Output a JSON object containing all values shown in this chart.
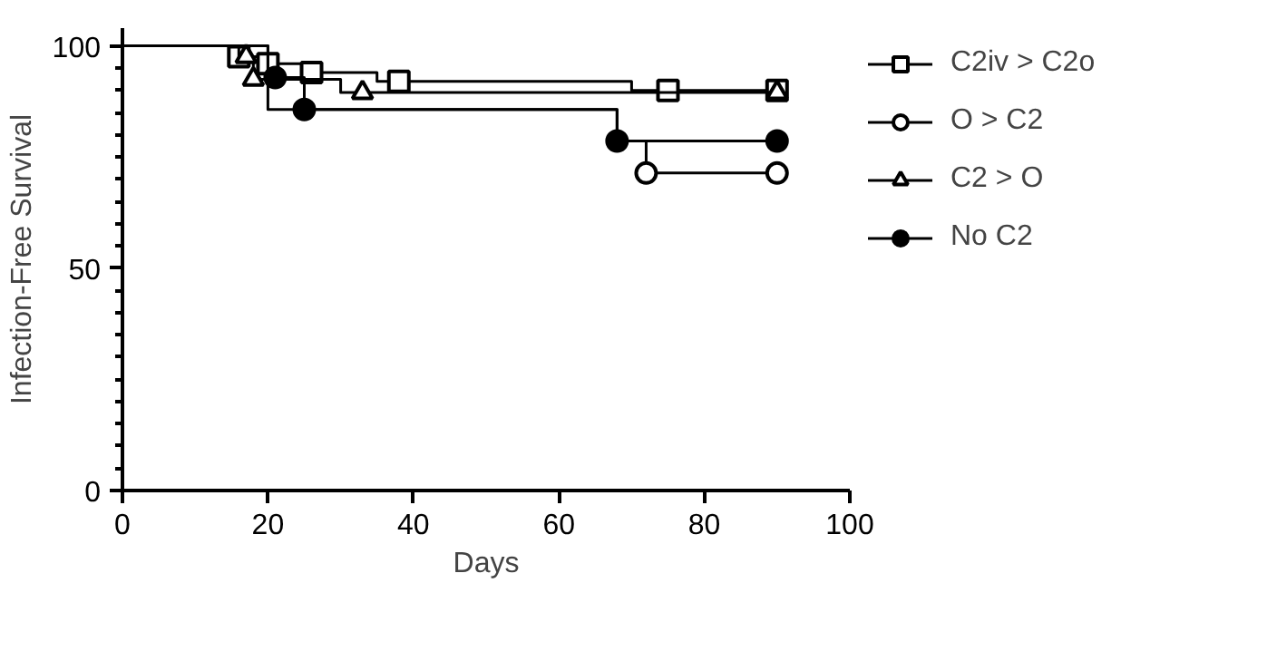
{
  "chart_data": {
    "type": "step",
    "xlabel": "Days",
    "ylabel": "Infection-Free Survival",
    "xlim": [
      0,
      100
    ],
    "xticks": [
      0,
      20,
      40,
      60,
      80,
      100
    ],
    "ylim": [
      0,
      104
    ],
    "yticks": [
      0,
      50,
      100
    ],
    "grid": false,
    "legend": "right",
    "line_style": "solid",
    "series": [
      {
        "name": "C2iv > C2o",
        "color": "#000000",
        "x": [
          0,
          15,
          19,
          25,
          35,
          70,
          90
        ],
        "values": [
          100,
          97.6,
          96,
          94,
          92,
          90,
          90
        ]
      },
      {
        "color": "#000000",
        "type": "scatter",
        "marker": "square",
        "colors": [
          "#ffffff",
          "#ffffff",
          "#ffffff",
          "#ffffff",
          "#ffffff",
          "#ffffff"
        ],
        "x": [
          16,
          20,
          26,
          38,
          75,
          90
        ],
        "values": [
          97.6,
          96,
          94,
          92,
          90,
          90
        ]
      },
      {
        "name": "O > C2",
        "color": "#000000",
        "x": [
          0,
          20,
          68,
          72,
          90
        ],
        "values": [
          100,
          85.7,
          78.6,
          71.4,
          71.4
        ]
      },
      {
        "color": "#000000",
        "type": "scatter",
        "marker": "circle",
        "colors": [
          "#ffffff",
          "#ffffff"
        ],
        "x": [
          72,
          90
        ],
        "values": [
          71.4,
          71.4
        ]
      },
      {
        "name": "C2 > O",
        "color": "#000000",
        "x": [
          0,
          16,
          18,
          30,
          90
        ],
        "values": [
          100,
          97.6,
          92.5,
          89.5,
          89.5
        ]
      },
      {
        "color": "#000000",
        "type": "scatter",
        "marker": "triangle",
        "colors": [
          "#ffffff",
          "#ffffff",
          "#ffffff",
          "#ffffff"
        ],
        "x": [
          17,
          18,
          33,
          90
        ],
        "values": [
          97.6,
          92.5,
          89.5,
          89.5
        ]
      },
      {
        "name": "No C2",
        "color": "#000000",
        "x": [
          0,
          20,
          25,
          68,
          90
        ],
        "values": [
          100,
          92.9,
          85.7,
          78.6,
          78.6
        ]
      },
      {
        "color": "#000000",
        "type": "scatter",
        "marker": "circle",
        "colors": [
          "#000000",
          "#000000",
          "#000000",
          "#000000"
        ],
        "x": [
          21,
          25,
          68,
          90
        ],
        "values": [
          92.9,
          85.7,
          78.6,
          78.6
        ]
      }
    ]
  }
}
